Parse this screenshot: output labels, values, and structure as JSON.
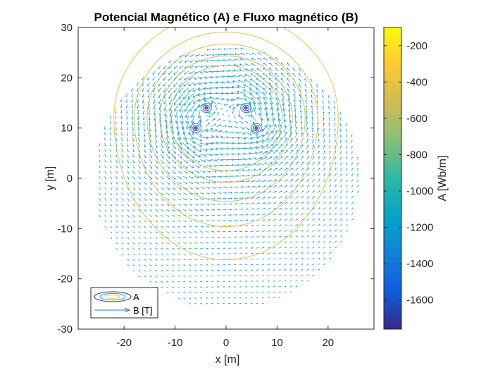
{
  "chart_data": {
    "type": "contour+quiver",
    "title": "Potencial Magnético (A) e Fluxo magnético (B)",
    "xlabel": "x [m]",
    "ylabel": "y [m]",
    "xlim": [
      -29,
      29
    ],
    "ylim": [
      -30,
      30
    ],
    "xticks": [
      -20,
      -10,
      0,
      10,
      20
    ],
    "yticks": [
      -30,
      -20,
      -10,
      0,
      10,
      20,
      30
    ],
    "grid": false,
    "legend_position": "bottom-left",
    "legend": [
      {
        "label": "A",
        "marker": "contour-ellipses"
      },
      {
        "label": "B [T]",
        "marker": "arrow"
      }
    ],
    "colorbar": {
      "label": "A [Wb/m]",
      "range": [
        -1760,
        -100
      ],
      "ticks": [
        -200,
        -400,
        -600,
        -800,
        -1000,
        -1200,
        -1400,
        -1600
      ],
      "colormap": "parula"
    },
    "domain_radius": 26,
    "sources": [
      {
        "x": -3.9,
        "y": 14.0
      },
      {
        "x": 3.9,
        "y": 14.0
      },
      {
        "x": -5.9,
        "y": 10.0
      },
      {
        "x": 5.9,
        "y": 10.0
      }
    ],
    "contours": [
      {
        "level": -380,
        "x_extent": [
          -22,
          22
        ],
        "y_bottom": -16.2
      },
      {
        "level": -430,
        "x_extent": [
          -18,
          18
        ],
        "y_bottom": -9.6
      },
      {
        "level": -470,
        "x_extent": [
          -15.5,
          15.5
        ],
        "y_bottom": -4.6
      },
      {
        "level": -520,
        "x_extent": [
          -13,
          13
        ],
        "y_bottom": -0.8
      },
      {
        "level": -580,
        "x_extent": [
          -11,
          11
        ],
        "y_bottom": 1.5
      }
    ],
    "colors": {
      "parula_low": "#352A87",
      "parula_mid": "#1FA9C9",
      "parula_high": "#F9FB0E",
      "text": "#262626"
    }
  }
}
